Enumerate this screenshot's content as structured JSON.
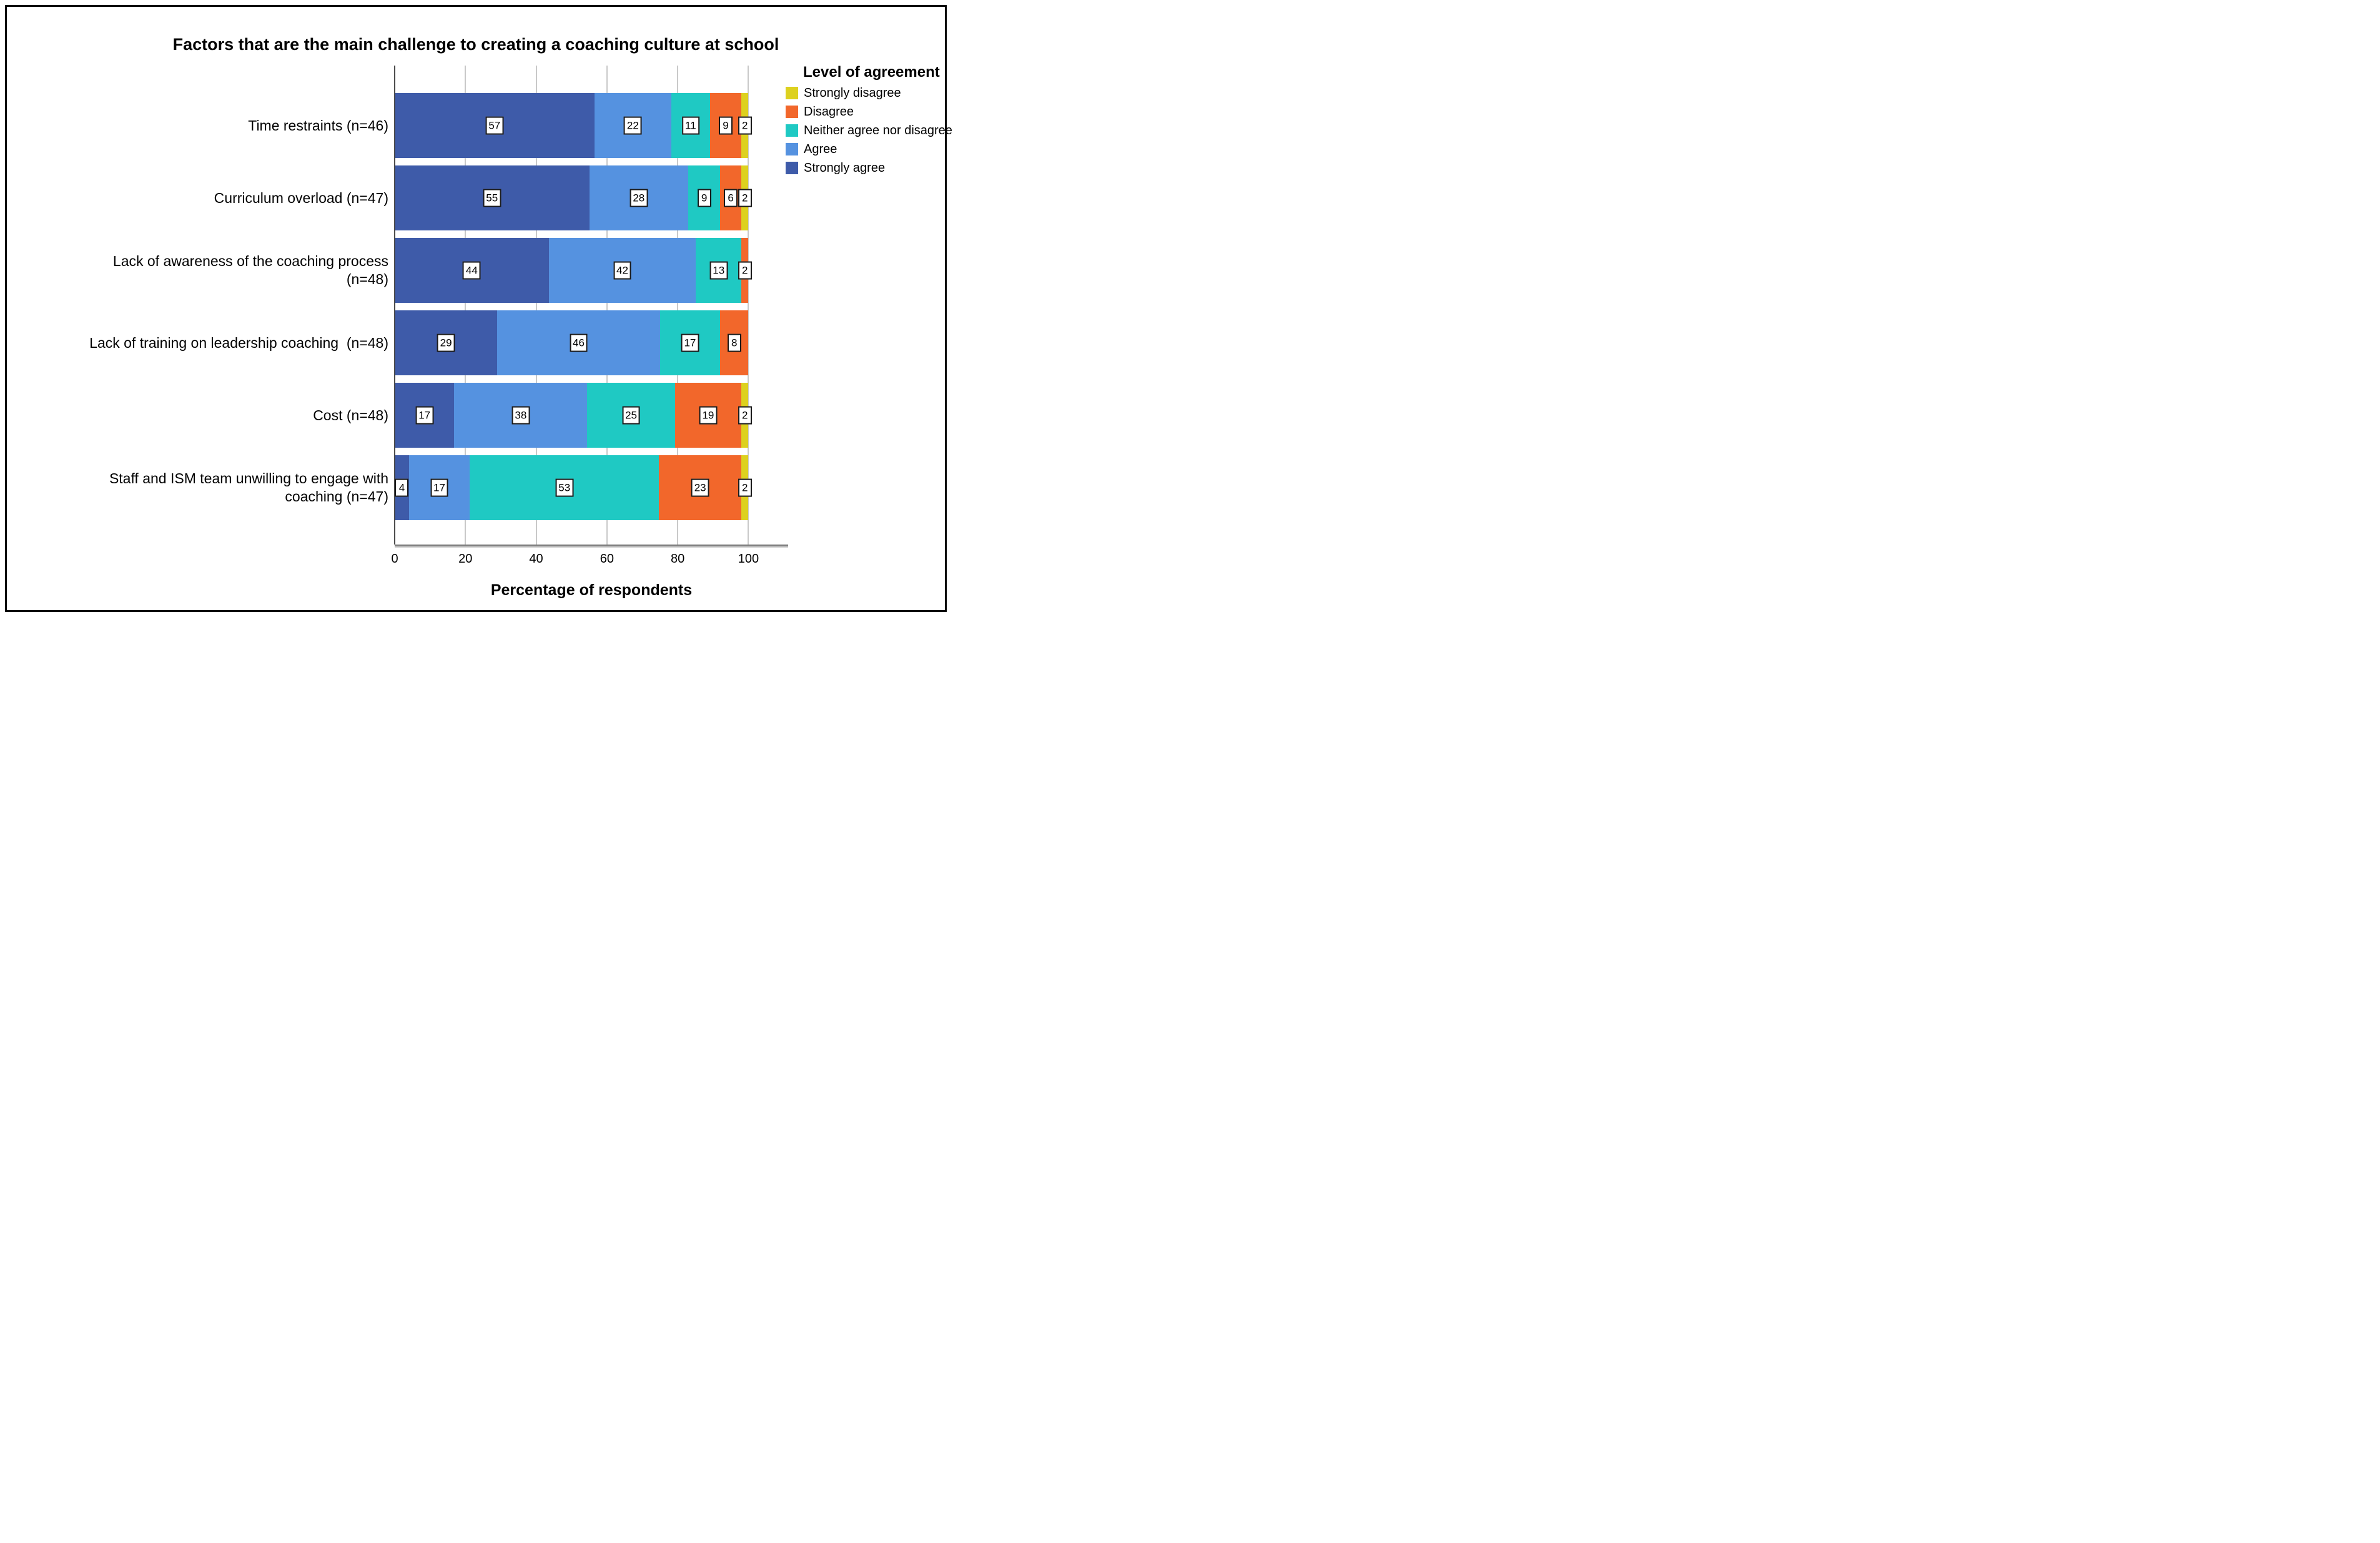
{
  "chart_data": {
    "type": "bar",
    "orientation": "horizontal",
    "stacked": true,
    "title": "Factors that are the main challenge to creating a coaching culture at school",
    "xlabel": "Percentage of respondents",
    "x_ticks": [
      "0",
      "20",
      "40",
      "60",
      "80",
      "100"
    ],
    "xlim": [
      0,
      111
    ],
    "grid": "vertical-gridlines-on",
    "value_labels": "framed-white-boxes",
    "categories": [
      {
        "label": "Time restraints (n=46)",
        "lines": [
          "Time restraints (n=46)"
        ]
      },
      {
        "label": "Curriculum overload (n=47)",
        "lines": [
          "Curriculum overload (n=47)"
        ]
      },
      {
        "label": "Lack of awareness of the coaching process (n=48)",
        "lines": [
          "Lack of awareness of the coaching process",
          "(n=48)"
        ]
      },
      {
        "label": "Lack of training on leadership coaching  (n=48)",
        "lines": [
          "Lack of training on leadership coaching  (n=48)"
        ]
      },
      {
        "label": "Cost (n=48)",
        "lines": [
          "Cost (n=48)"
        ]
      },
      {
        "label": "Staff and ISM team unwilling to engage with coaching (n=47)",
        "lines": [
          "Staff and ISM team unwilling to engage with",
          "coaching (n=47)"
        ]
      }
    ],
    "series": [
      {
        "name": "Strongly agree",
        "color": "#3e5ba9",
        "values": [
          57,
          55,
          44,
          29,
          17,
          4
        ]
      },
      {
        "name": "Agree",
        "color": "#5592e0",
        "values": [
          22,
          28,
          42,
          46,
          38,
          17
        ]
      },
      {
        "name": "Neither agree nor disagree",
        "color": "#1fc9c3",
        "values": [
          11,
          9,
          13,
          17,
          25,
          53
        ]
      },
      {
        "name": "Disagree",
        "color": "#f2672b",
        "values": [
          9,
          6,
          2,
          8,
          19,
          23
        ]
      },
      {
        "name": "Strongly disagree",
        "color": "#ddd11f",
        "values": [
          2,
          2,
          0,
          0,
          2,
          2
        ]
      }
    ],
    "legend": {
      "title": "Level of agreement",
      "position": "top-right",
      "items": [
        {
          "label": "Strongly disagree",
          "color": "#ddd11f"
        },
        {
          "label": "Disagree",
          "color": "#f2672b"
        },
        {
          "label": "Neither agree nor disagree",
          "color": "#1fc9c3"
        },
        {
          "label": "Agree",
          "color": "#5592e0"
        },
        {
          "label": "Strongly agree",
          "color": "#3e5ba9"
        }
      ]
    }
  }
}
